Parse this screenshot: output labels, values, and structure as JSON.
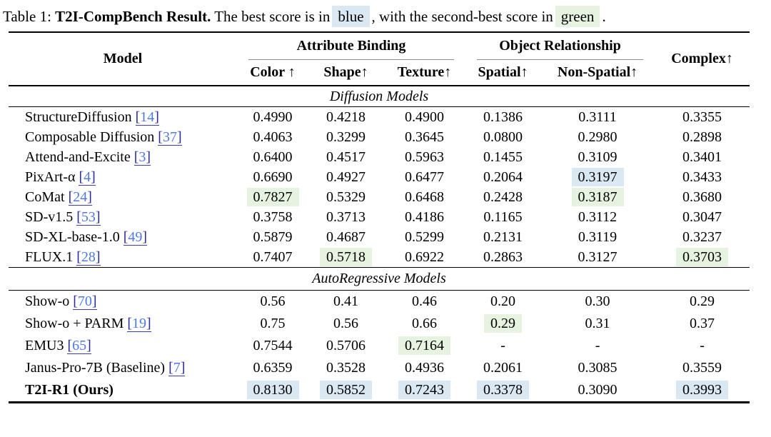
{
  "caption": {
    "label": "Table 1: ",
    "title_bold": "T2I-CompBench Result.",
    "text_before_blue": " The best score is in",
    "blue_word": "blue",
    "text_between": ", with the second-best score in",
    "green_word": "green",
    "text_end": "."
  },
  "colors": {
    "best_highlight": "#d9e8f3",
    "second_highlight": "#e6f3e1",
    "cite_number": "#4d79e6",
    "cite_bracket": "#2a2aa0"
  },
  "table": {
    "header": {
      "model": "Model",
      "group1": "Attribute Binding",
      "group2": "Object Relationship",
      "complex": "Complex↑",
      "subcols": [
        "Color ↑",
        "Shape↑",
        "Texture↑",
        "Spatial↑",
        "Non-Spatial↑"
      ]
    },
    "cite_open": "[",
    "cite_close": "]",
    "sections": [
      {
        "title": "Diffusion Models",
        "rows": [
          {
            "model": "StructureDiffusion",
            "cite": "14",
            "bold": false,
            "values": [
              "0.4990",
              "0.4218",
              "0.4900",
              "0.1386",
              "0.3111",
              "0.3355"
            ],
            "hl": [
              null,
              null,
              null,
              null,
              null,
              null
            ]
          },
          {
            "model": "Composable Diffusion",
            "cite": "37",
            "bold": false,
            "values": [
              "0.4063",
              "0.3299",
              "0.3645",
              "0.0800",
              "0.2980",
              "0.2898"
            ],
            "hl": [
              null,
              null,
              null,
              null,
              null,
              null
            ]
          },
          {
            "model": "Attend-and-Excite",
            "cite": "3",
            "bold": false,
            "values": [
              "0.6400",
              "0.4517",
              "0.5963",
              "0.1455",
              "0.3109",
              "0.3401"
            ],
            "hl": [
              null,
              null,
              null,
              null,
              null,
              null
            ]
          },
          {
            "model": "PixArt-α",
            "cite": "4",
            "bold": false,
            "values": [
              "0.6690",
              "0.4927",
              "0.6477",
              "0.2064",
              "0.3197",
              "0.3433"
            ],
            "hl": [
              null,
              null,
              null,
              null,
              "best",
              null
            ]
          },
          {
            "model": "CoMat",
            "cite": "24",
            "bold": false,
            "values": [
              "0.7827",
              "0.5329",
              "0.6468",
              "0.2428",
              "0.3187",
              "0.3680"
            ],
            "hl": [
              "second",
              null,
              null,
              null,
              "second",
              null
            ]
          },
          {
            "model": "SD-v1.5",
            "cite": "53",
            "bold": false,
            "values": [
              "0.3758",
              "0.3713",
              "0.4186",
              "0.1165",
              "0.3112",
              "0.3047"
            ],
            "hl": [
              null,
              null,
              null,
              null,
              null,
              null
            ]
          },
          {
            "model": "SD-XL-base-1.0",
            "cite": "49",
            "bold": false,
            "values": [
              "0.5879",
              "0.4687",
              "0.5299",
              "0.2131",
              "0.3119",
              "0.3237"
            ],
            "hl": [
              null,
              null,
              null,
              null,
              null,
              null
            ]
          },
          {
            "model": "FLUX.1",
            "cite": "28",
            "bold": false,
            "values": [
              "0.7407",
              "0.5718",
              "0.6922",
              "0.2863",
              "0.3127",
              "0.3703"
            ],
            "hl": [
              null,
              "second",
              null,
              null,
              null,
              "second"
            ]
          }
        ]
      },
      {
        "title": "AutoRegressive Models",
        "rows": [
          {
            "model": "Show-o",
            "cite": "70",
            "bold": false,
            "values": [
              "0.56",
              "0.41",
              "0.46",
              "0.20",
              "0.30",
              "0.29"
            ],
            "hl": [
              null,
              null,
              null,
              null,
              null,
              null
            ]
          },
          {
            "model": "Show-o + PARM",
            "cite": "19",
            "bold": false,
            "values": [
              "0.75",
              "0.56",
              "0.66",
              "0.29",
              "0.31",
              "0.37"
            ],
            "hl": [
              null,
              null,
              null,
              "second",
              null,
              null
            ]
          },
          {
            "model": "EMU3",
            "cite": "65",
            "bold": false,
            "values": [
              "0.7544",
              "0.5706",
              "0.7164",
              "-",
              "-",
              "-"
            ],
            "hl": [
              null,
              null,
              "second",
              null,
              null,
              null
            ]
          },
          {
            "model": "Janus-Pro-7B (Baseline)",
            "cite": "7",
            "bold": false,
            "values": [
              "0.6359",
              "0.3528",
              "0.4936",
              "0.2061",
              "0.3085",
              "0.3559"
            ],
            "hl": [
              null,
              null,
              null,
              null,
              null,
              null
            ]
          },
          {
            "model": "T2I-R1 (Ours)",
            "cite": null,
            "bold": true,
            "values": [
              "0.8130",
              "0.5852",
              "0.7243",
              "0.3378",
              "0.3090",
              "0.3993"
            ],
            "hl": [
              "best",
              "best",
              "best",
              "best",
              null,
              "best"
            ]
          }
        ]
      }
    ]
  }
}
